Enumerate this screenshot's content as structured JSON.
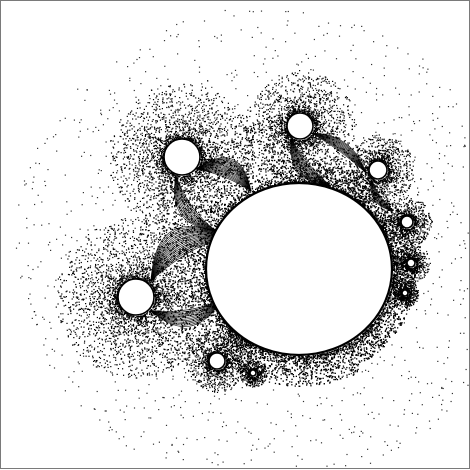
{
  "image": {
    "subject": "fractal-pattern",
    "background_color": "#ffffff",
    "ink_color": "#000000",
    "border_color": "#7a7a7a"
  }
}
